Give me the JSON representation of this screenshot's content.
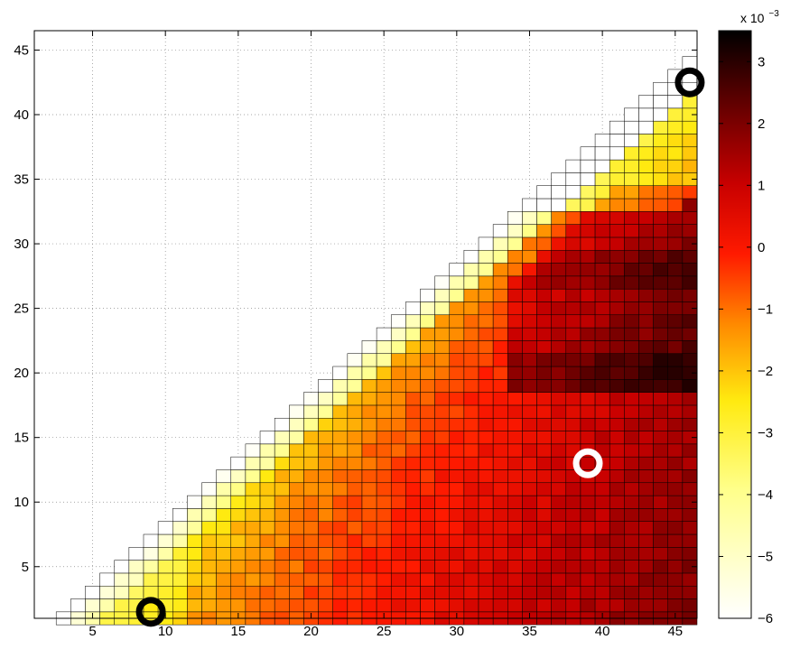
{
  "chart_data": {
    "type": "heatmap",
    "title": "",
    "xlabel": "",
    "ylabel": "",
    "x_ticks": [
      5,
      10,
      15,
      20,
      25,
      30,
      35,
      40,
      45
    ],
    "y_ticks": [
      5,
      10,
      15,
      20,
      25,
      30,
      35,
      40,
      45
    ],
    "xlim": [
      1,
      46.5
    ],
    "ylim": [
      1,
      46.5
    ],
    "grid": true,
    "colormap": "hot (white → yellow → red → black)",
    "colorbar": {
      "range": [
        -6,
        3.5
      ],
      "ticks": [
        -6,
        -5,
        -4,
        -3,
        -2,
        -1,
        0,
        1,
        2,
        3
      ],
      "exponent_label": "x 10",
      "exponent_power": "−3"
    },
    "cell_rule": "cell (x, y) is filled for 1 ≤ y ≤ x − 2, columns x = 3 … 46; value in units of 1e-3",
    "markers": [
      {
        "x": 9,
        "y": 1.5,
        "color": "#000000"
      },
      {
        "x": 39,
        "y": 13,
        "color": "#ffffff"
      },
      {
        "x": 46,
        "y": 42.5,
        "color": "#000000"
      }
    ]
  }
}
